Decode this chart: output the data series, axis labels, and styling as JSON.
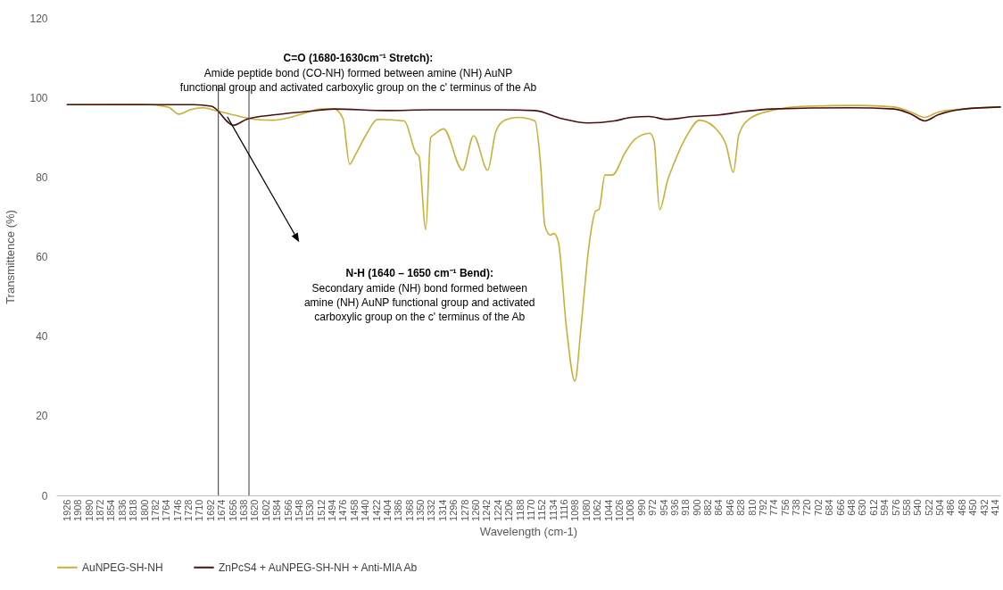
{
  "chart_data": {
    "type": "line",
    "xlabel": "Wavelength (cm-1)",
    "ylabel": "Transmittence (%)",
    "xlim": [
      1944,
      406
    ],
    "xticks": [
      1926,
      1908,
      1890,
      1872,
      1854,
      1836,
      1818,
      1800,
      1782,
      1764,
      1746,
      1728,
      1710,
      1692,
      1674,
      1656,
      1638,
      1620,
      1602,
      1584,
      1566,
      1548,
      1530,
      1512,
      1494,
      1476,
      1458,
      1440,
      1422,
      1404,
      1386,
      1368,
      1350,
      1332,
      1314,
      1296,
      1278,
      1260,
      1242,
      1224,
      1206,
      1188,
      1170,
      1152,
      1134,
      1116,
      1098,
      1080,
      1062,
      1044,
      1026,
      1008,
      990,
      972,
      954,
      936,
      918,
      900,
      882,
      864,
      846,
      828,
      810,
      792,
      774,
      756,
      738,
      720,
      702,
      684,
      666,
      648,
      630,
      612,
      594,
      576,
      558,
      540,
      522,
      504,
      486,
      468,
      450,
      432,
      414
    ],
    "ylim": [
      0,
      120
    ],
    "yticks": [
      0,
      20,
      40,
      60,
      80,
      100,
      120
    ],
    "grid": false,
    "legend": "bottom",
    "marker": "none",
    "line_style": "solid",
    "series": [
      {
        "name": "AuNPEG-SH-NH",
        "color": "#c9b037",
        "x": [
          1926,
          1805,
          1762,
          1744,
          1726,
          1705,
          1684,
          1655,
          1620,
          1591,
          1563,
          1534,
          1513,
          1491,
          1477,
          1466,
          1457,
          1440,
          1420,
          1377,
          1358,
          1353,
          1342,
          1334,
          1327,
          1313,
          1282,
          1264,
          1241,
          1228,
          1213,
          1192,
          1164,
          1155,
          1148,
          1139,
          1133,
          1126,
          1113,
          1099,
          1089,
          1076,
          1065,
          1060,
          1050,
          1038,
          1017,
          1001,
          977,
          970,
          961,
          948,
          938,
          916,
          896,
          863,
          853,
          841,
          832,
          814,
          779,
          722,
          636,
          579,
          551,
          529,
          508,
          465,
          406
        ],
        "values": [
          98.2,
          98.3,
          97.6,
          95.8,
          96.9,
          97.4,
          96.7,
          95.6,
          94.5,
          94.3,
          95,
          96.3,
          97.1,
          97.1,
          94.7,
          83.2,
          85.5,
          90.4,
          94.5,
          94.1,
          86,
          85.2,
          66.8,
          89.9,
          90.8,
          92.1,
          81.7,
          90.4,
          81.7,
          91.4,
          94.3,
          95,
          94.1,
          83.3,
          67.8,
          65.4,
          65.8,
          63.7,
          42.4,
          28.7,
          42.4,
          62.9,
          71.5,
          71.8,
          80.5,
          80.5,
          86.2,
          89.5,
          91,
          89,
          71.8,
          79.2,
          83.3,
          90.6,
          94.3,
          91,
          88.2,
          81.2,
          90.6,
          94.7,
          96.7,
          97.8,
          98,
          97.6,
          96.3,
          95,
          96.3,
          97.1,
          97.6
        ]
      },
      {
        "name": "ZnPcS4 + AuNPEG-SH-NH + Anti-MIA Ab",
        "color": "#4a0f10",
        "x": [
          1926,
          1720,
          1691,
          1655,
          1634,
          1591,
          1534,
          1491,
          1406,
          1335,
          1221,
          1164,
          1121,
          1078,
          1035,
          1007,
          978,
          950,
          907,
          864,
          822,
          779,
          650,
          579,
          551,
          529,
          508,
          465,
          406
        ],
        "values": [
          98.2,
          98.2,
          97.8,
          93,
          94.5,
          95.6,
          96.5,
          97.1,
          96.7,
          96.9,
          96.9,
          96.7,
          94.7,
          93.6,
          94.1,
          95,
          95.2,
          94.5,
          95.2,
          95.6,
          96.5,
          97.1,
          97.4,
          97.1,
          95.8,
          94.1,
          95.6,
          97.1,
          97.6
        ]
      }
    ],
    "ref_lines": [
      {
        "axis": "x",
        "value": 1680,
        "color": "#595959"
      },
      {
        "axis": "x",
        "value": 1630,
        "color": "#595959"
      }
    ],
    "annotations": [
      "C=O (1680-1630cm⁻¹ Stretch):\nAmide peptide bond (CO-NH) formed between amine (NH) AuNP\nfunctional group and activated carboxylic group on the c' terminus of the Ab",
      "N-H (1640 – 1650 cm⁻¹ Bend):\nSecondary amide (NH) bond formed between\namine (NH) AuNP functional group and activated\ncarboxylic group on the c' terminus of the Ab"
    ]
  }
}
